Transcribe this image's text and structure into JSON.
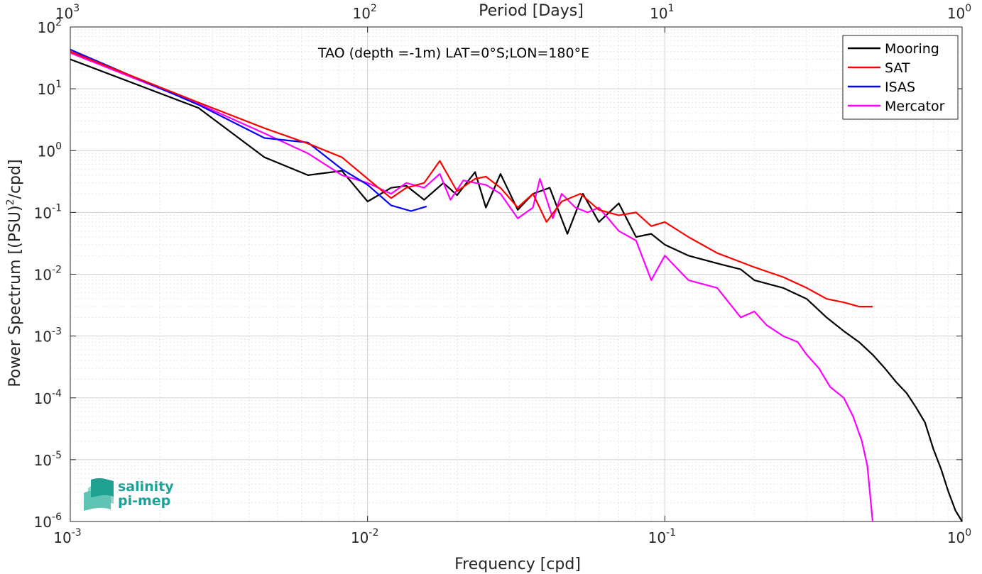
{
  "chart_data": {
    "type": "line",
    "title": "",
    "annotation": "TAO (depth =-1m) LAT=0°S;LON=180°E",
    "xlabel": "Frequency [cpd]",
    "ylabel": "Power Spectrum [(PSU)",
    "ylabel_sup": "2",
    "ylabel_tail": "/cpd]",
    "x2label": "Period [Days]",
    "xscale": "log",
    "yscale": "log",
    "xlim": [
      0.001,
      1
    ],
    "ylim": [
      1e-06,
      100
    ],
    "grid": true,
    "legend_position": "top-right",
    "x_ticks": [
      {
        "v": 0.001,
        "base": "10",
        "exp": "-3"
      },
      {
        "v": 0.01,
        "base": "10",
        "exp": "-2"
      },
      {
        "v": 0.1,
        "base": "10",
        "exp": "-1"
      },
      {
        "v": 1,
        "base": "10",
        "exp": "0"
      }
    ],
    "x2_ticks": [
      {
        "v": 0.001,
        "base": "10",
        "exp": "3"
      },
      {
        "v": 0.01,
        "base": "10",
        "exp": "2"
      },
      {
        "v": 0.1,
        "base": "10",
        "exp": "1"
      },
      {
        "v": 1,
        "base": "10",
        "exp": "0"
      }
    ],
    "y_ticks": [
      {
        "v": 100,
        "base": "10",
        "exp": "2"
      },
      {
        "v": 10,
        "base": "10",
        "exp": "1"
      },
      {
        "v": 1,
        "base": "10",
        "exp": "0"
      },
      {
        "v": 0.1,
        "base": "10",
        "exp": "-1"
      },
      {
        "v": 0.01,
        "base": "10",
        "exp": "-2"
      },
      {
        "v": 0.001,
        "base": "10",
        "exp": "-3"
      },
      {
        "v": 0.0001,
        "base": "10",
        "exp": "-4"
      },
      {
        "v": 1e-05,
        "base": "10",
        "exp": "-5"
      },
      {
        "v": 1e-06,
        "base": "10",
        "exp": "-6"
      }
    ],
    "series": [
      {
        "name": "Mooring",
        "color": "#000000",
        "points": [
          [
            0.001,
            30
          ],
          [
            0.0027,
            4.9
          ],
          [
            0.0045,
            0.78
          ],
          [
            0.0063,
            0.4
          ],
          [
            0.0082,
            0.47
          ],
          [
            0.01,
            0.15
          ],
          [
            0.012,
            0.25
          ],
          [
            0.0135,
            0.27
          ],
          [
            0.0155,
            0.16
          ],
          [
            0.018,
            0.3
          ],
          [
            0.02,
            0.19
          ],
          [
            0.023,
            0.45
          ],
          [
            0.025,
            0.12
          ],
          [
            0.028,
            0.42
          ],
          [
            0.032,
            0.11
          ],
          [
            0.036,
            0.2
          ],
          [
            0.041,
            0.25
          ],
          [
            0.047,
            0.045
          ],
          [
            0.053,
            0.2
          ],
          [
            0.06,
            0.07
          ],
          [
            0.07,
            0.14
          ],
          [
            0.08,
            0.04
          ],
          [
            0.09,
            0.045
          ],
          [
            0.1,
            0.03
          ],
          [
            0.12,
            0.02
          ],
          [
            0.15,
            0.015
          ],
          [
            0.18,
            0.012
          ],
          [
            0.2,
            0.008
          ],
          [
            0.25,
            0.006
          ],
          [
            0.3,
            0.004
          ],
          [
            0.35,
            0.002
          ],
          [
            0.4,
            0.0012
          ],
          [
            0.45,
            0.0008
          ],
          [
            0.5,
            0.0005
          ],
          [
            0.55,
            0.0003
          ],
          [
            0.6,
            0.00018
          ],
          [
            0.65,
            0.00012
          ],
          [
            0.7,
            7e-05
          ],
          [
            0.75,
            4e-05
          ],
          [
            0.8,
            1.5e-05
          ],
          [
            0.85,
            7e-06
          ],
          [
            0.9,
            3e-06
          ],
          [
            0.95,
            1.5e-06
          ],
          [
            1.0,
            1e-06
          ]
        ]
      },
      {
        "name": "SAT",
        "color": "#ff0000",
        "points": [
          [
            0.001,
            40
          ],
          [
            0.0027,
            6
          ],
          [
            0.0045,
            2.3
          ],
          [
            0.0063,
            1.3
          ],
          [
            0.0082,
            0.78
          ],
          [
            0.01,
            0.35
          ],
          [
            0.012,
            0.17
          ],
          [
            0.0135,
            0.25
          ],
          [
            0.0155,
            0.3
          ],
          [
            0.0175,
            0.68
          ],
          [
            0.02,
            0.22
          ],
          [
            0.023,
            0.35
          ],
          [
            0.025,
            0.38
          ],
          [
            0.028,
            0.25
          ],
          [
            0.032,
            0.12
          ],
          [
            0.036,
            0.2
          ],
          [
            0.04,
            0.07
          ],
          [
            0.045,
            0.15
          ],
          [
            0.052,
            0.2
          ],
          [
            0.06,
            0.11
          ],
          [
            0.07,
            0.09
          ],
          [
            0.08,
            0.1
          ],
          [
            0.09,
            0.06
          ],
          [
            0.1,
            0.07
          ],
          [
            0.12,
            0.04
          ],
          [
            0.15,
            0.022
          ],
          [
            0.2,
            0.013
          ],
          [
            0.25,
            0.009
          ],
          [
            0.3,
            0.006
          ],
          [
            0.35,
            0.004
          ],
          [
            0.4,
            0.0035
          ],
          [
            0.45,
            0.003
          ],
          [
            0.5,
            0.003
          ]
        ]
      },
      {
        "name": "ISAS",
        "color": "#0000ff",
        "points": [
          [
            0.001,
            43
          ],
          [
            0.0027,
            5.5
          ],
          [
            0.0045,
            1.6
          ],
          [
            0.0063,
            1.35
          ],
          [
            0.0082,
            0.5
          ],
          [
            0.01,
            0.28
          ],
          [
            0.012,
            0.13
          ],
          [
            0.014,
            0.105
          ],
          [
            0.0158,
            0.125
          ]
        ]
      },
      {
        "name": "Mercator",
        "color": "#ff00ff",
        "points": [
          [
            0.001,
            38
          ],
          [
            0.0027,
            5.7
          ],
          [
            0.0045,
            1.9
          ],
          [
            0.0063,
            0.9
          ],
          [
            0.0082,
            0.4
          ],
          [
            0.01,
            0.3
          ],
          [
            0.012,
            0.2
          ],
          [
            0.0135,
            0.3
          ],
          [
            0.0155,
            0.25
          ],
          [
            0.0175,
            0.42
          ],
          [
            0.019,
            0.16
          ],
          [
            0.021,
            0.33
          ],
          [
            0.023,
            0.3
          ],
          [
            0.025,
            0.28
          ],
          [
            0.028,
            0.2
          ],
          [
            0.032,
            0.08
          ],
          [
            0.036,
            0.12
          ],
          [
            0.038,
            0.35
          ],
          [
            0.042,
            0.08
          ],
          [
            0.045,
            0.2
          ],
          [
            0.05,
            0.12
          ],
          [
            0.055,
            0.1
          ],
          [
            0.06,
            0.12
          ],
          [
            0.07,
            0.05
          ],
          [
            0.08,
            0.035
          ],
          [
            0.09,
            0.008
          ],
          [
            0.1,
            0.02
          ],
          [
            0.12,
            0.008
          ],
          [
            0.15,
            0.006
          ],
          [
            0.18,
            0.002
          ],
          [
            0.2,
            0.0025
          ],
          [
            0.22,
            0.0015
          ],
          [
            0.25,
            0.001
          ],
          [
            0.28,
            0.0008
          ],
          [
            0.3,
            0.0005
          ],
          [
            0.33,
            0.0003
          ],
          [
            0.36,
            0.00015
          ],
          [
            0.4,
            0.0001
          ],
          [
            0.43,
            5e-05
          ],
          [
            0.46,
            2e-05
          ],
          [
            0.48,
            8e-06
          ],
          [
            0.5,
            1e-06
          ]
        ]
      }
    ]
  },
  "logo": {
    "line1": "salinity",
    "line2": "pi-mep"
  }
}
